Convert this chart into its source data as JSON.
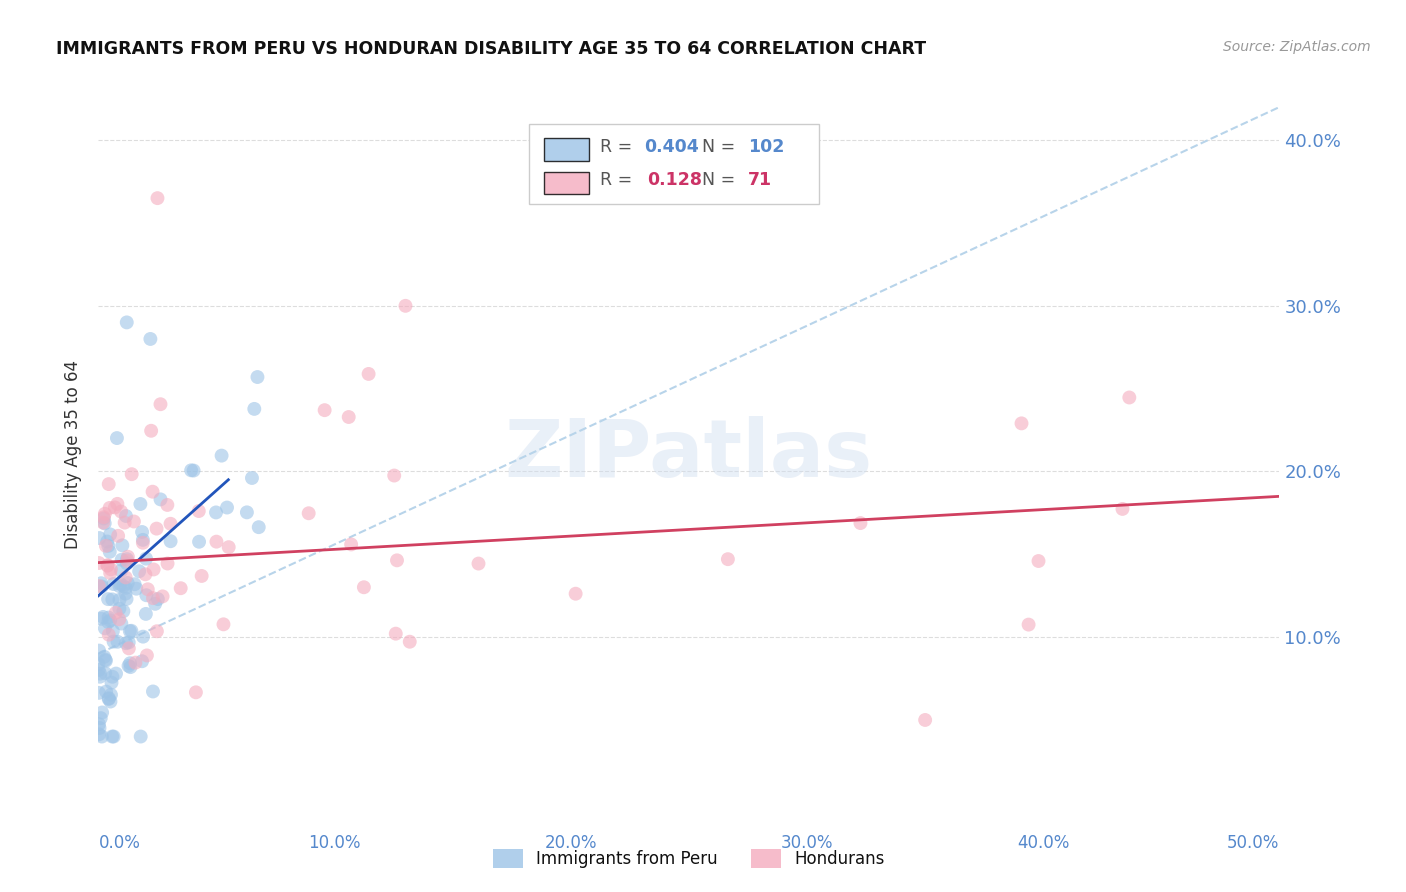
{
  "title": "IMMIGRANTS FROM PERU VS HONDURAN DISABILITY AGE 35 TO 64 CORRELATION CHART",
  "source": "Source: ZipAtlas.com",
  "ylabel": "Disability Age 35 to 64",
  "xlim": [
    0.0,
    0.5
  ],
  "ylim": [
    0.0,
    0.42
  ],
  "yticks": [
    0.1,
    0.2,
    0.3,
    0.4
  ],
  "xtick_vals": [
    0.0,
    0.1,
    0.2,
    0.3,
    0.4,
    0.5
  ],
  "ytick_labels": [
    "10.0%",
    "20.0%",
    "30.0%",
    "40.0%"
  ],
  "xtick_labels": [
    "0.0%",
    "10.0%",
    "20.0%",
    "30.0%",
    "40.0%",
    "50.0%"
  ],
  "legend_entries": [
    {
      "label": "Immigrants from Peru",
      "color": "#9DC3E6"
    },
    {
      "label": "Hondurans",
      "color": "#F4ACBE"
    }
  ],
  "peru_R": "0.404",
  "peru_N": "102",
  "honduras_R": "0.128",
  "honduras_N": "71",
  "peru_color": "#9DC3E6",
  "honduras_color": "#F4ACBE",
  "peru_line_color": "#2255BB",
  "honduras_line_color": "#D04060",
  "dashed_line_color": "#B8D4EA",
  "background_color": "#FFFFFF",
  "watermark_text": "ZIPatlas",
  "watermark_color": "#D0DEF0",
  "tick_color": "#5588CC",
  "title_color": "#111111",
  "source_color": "#999999",
  "ylabel_color": "#333333",
  "grid_color": "#DDDDDD",
  "legend_box_color": "#CCCCCC",
  "peru_scatter_seed": 12,
  "honduras_scatter_seed": 34,
  "peru_line_x": [
    0.0,
    0.055
  ],
  "peru_line_y": [
    0.125,
    0.195
  ],
  "honduras_line_x": [
    0.0,
    0.5
  ],
  "honduras_line_y": [
    0.145,
    0.185
  ],
  "dashed_line_x": [
    0.0,
    0.5
  ],
  "dashed_line_y": [
    0.09,
    0.42
  ]
}
